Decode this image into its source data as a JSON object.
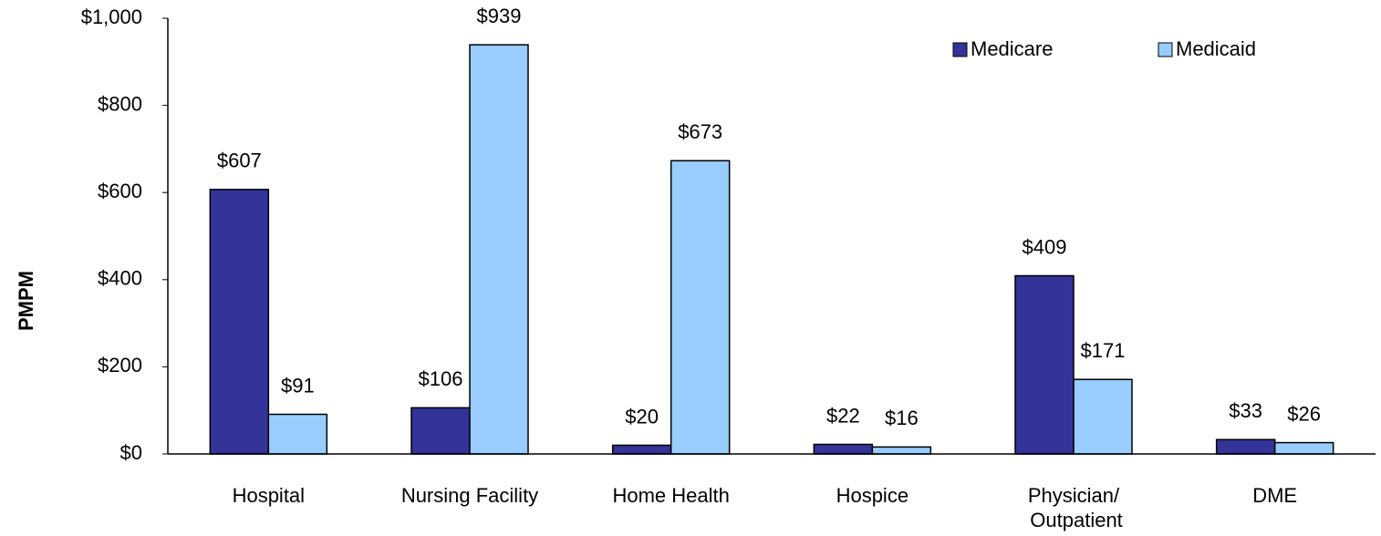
{
  "chart_data": {
    "type": "bar",
    "y_label": "PMPM",
    "categories": [
      "Hospital",
      "Nursing Facility",
      "Home Health",
      "Hospice",
      "Physician/ Outpatient",
      "DME"
    ],
    "series": [
      {
        "name": "Medicare",
        "color": "#333399",
        "values": [
          607,
          106,
          20,
          22,
          409,
          33
        ],
        "value_labels": [
          "$607",
          "$106",
          "$20",
          "$22",
          "$409",
          "$33"
        ]
      },
      {
        "name": "Medicaid",
        "color": "#99ccff",
        "values": [
          91,
          939,
          673,
          16,
          171,
          26
        ],
        "value_labels": [
          "$91",
          "$939",
          "$673",
          "$16",
          "$171",
          "$26"
        ]
      }
    ],
    "ylim": [
      0,
      1000
    ],
    "yticks": [
      {
        "value": 0,
        "label": "$0"
      },
      {
        "value": 200,
        "label": "$200"
      },
      {
        "value": 400,
        "label": "$400"
      },
      {
        "value": 600,
        "label": "$600"
      },
      {
        "value": 800,
        "label": "$800"
      },
      {
        "value": 1000,
        "label": "$1,000"
      }
    ],
    "grid": false,
    "legend": "top-right"
  }
}
